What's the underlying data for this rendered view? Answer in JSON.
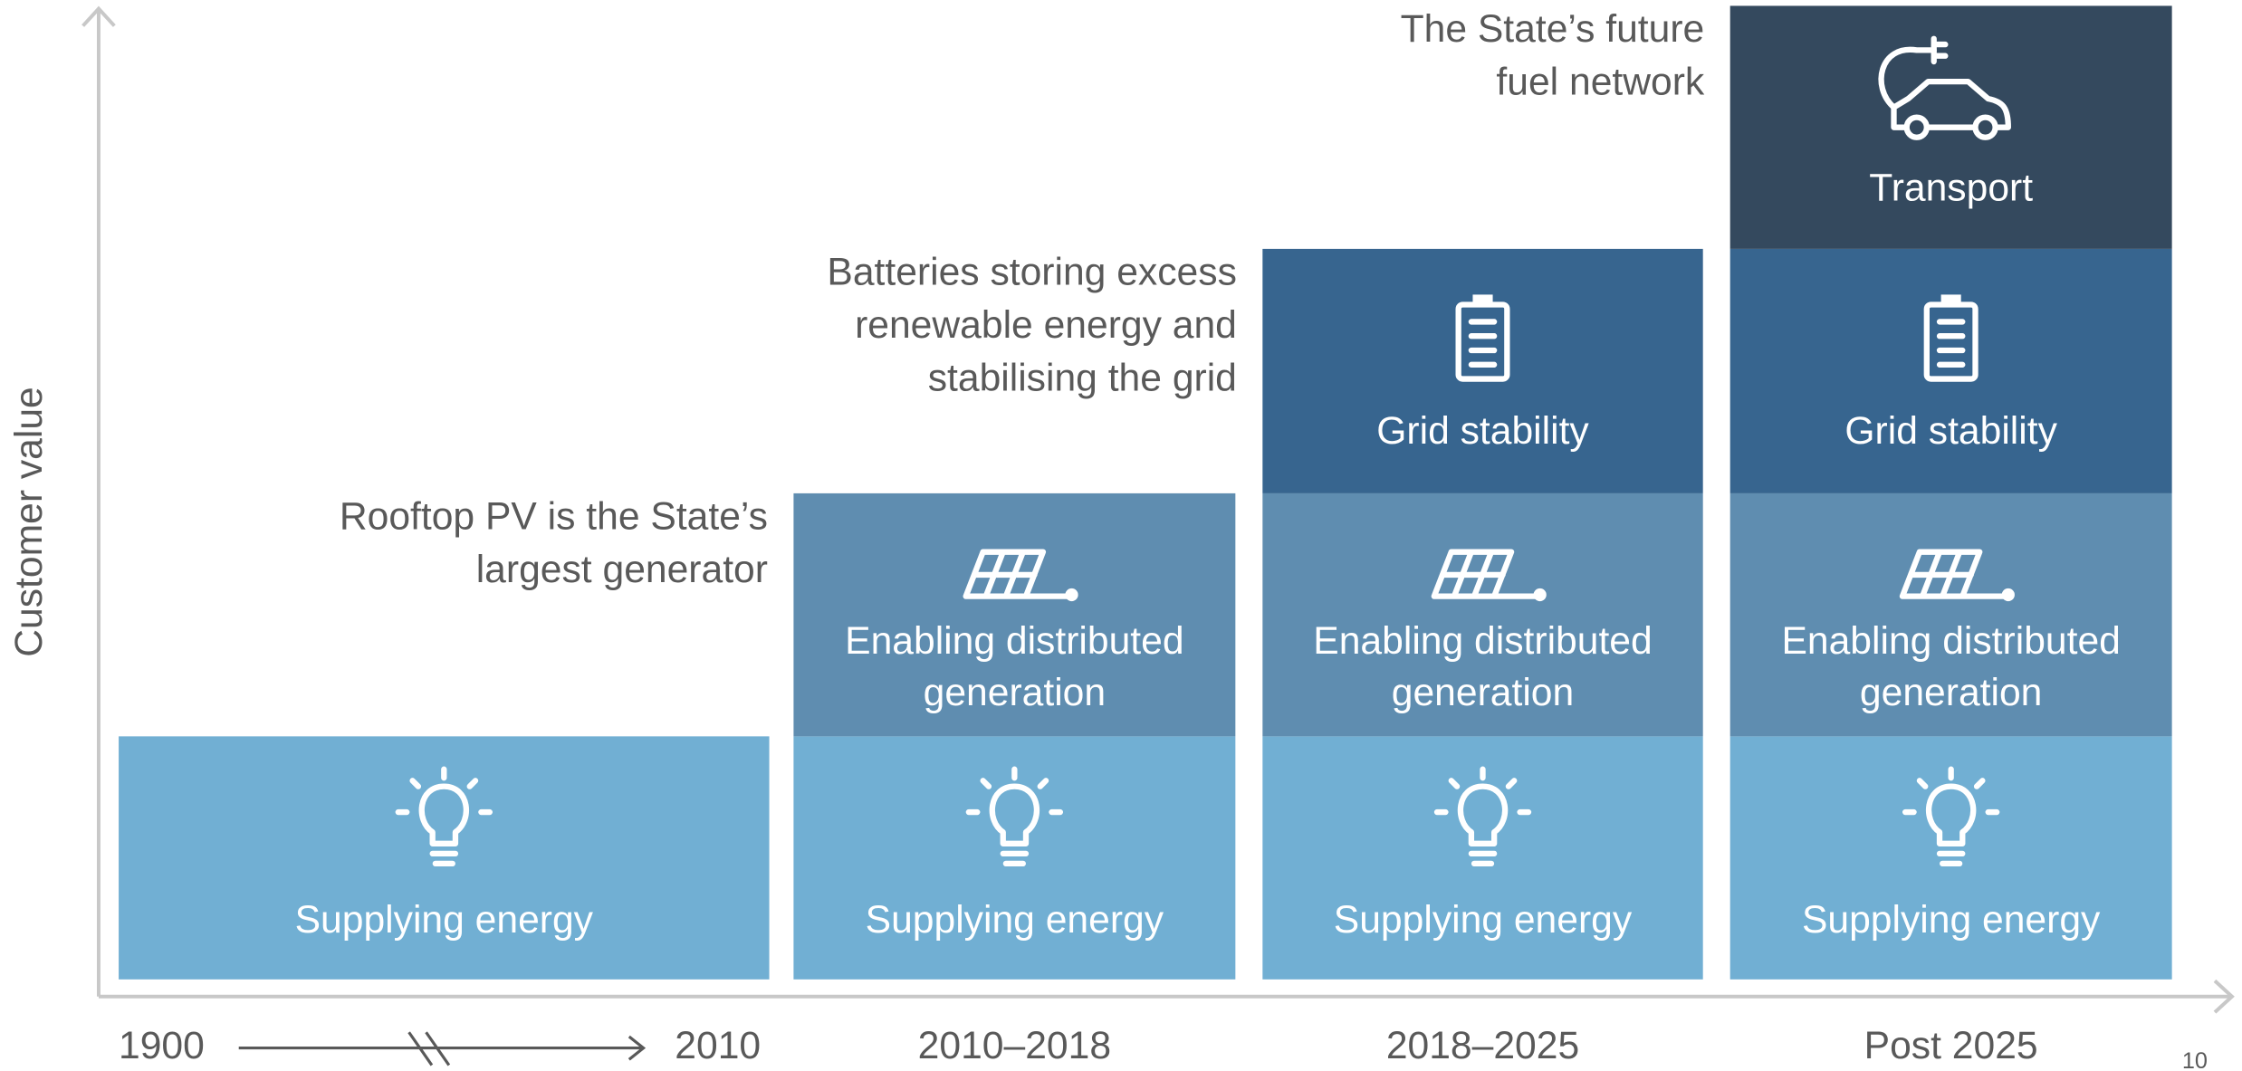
{
  "y_axis_label": "Customer value",
  "page_number": "10",
  "columns": [
    {
      "start": "1900",
      "end": "2010",
      "blocks": [
        [
          "Supplying energy"
        ]
      ]
    },
    {
      "label": "2010–2018",
      "annotation": [
        "Rooftop PV is the State’s",
        "largest generator"
      ],
      "blocks": [
        [
          "Supplying energy"
        ],
        [
          "Enabling distributed",
          "generation"
        ]
      ]
    },
    {
      "label": "2018–2025",
      "annotation": [
        "Batteries storing excess",
        "renewable energy and",
        "stabilising the grid"
      ],
      "blocks": [
        [
          "Supplying energy"
        ],
        [
          "Enabling distributed",
          "generation"
        ],
        [
          "Grid stability"
        ]
      ]
    },
    {
      "label": "Post 2025",
      "annotation": [
        "The State’s future",
        "fuel network"
      ],
      "blocks": [
        [
          "Supplying energy"
        ],
        [
          "Enabling distributed",
          "generation"
        ],
        [
          "Grid stability"
        ],
        [
          "Transport"
        ]
      ]
    }
  ]
}
